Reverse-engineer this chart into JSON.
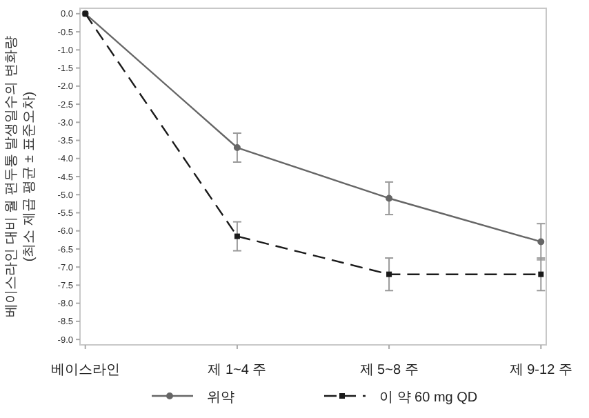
{
  "chart_data": {
    "type": "line",
    "ylabel": "베이스라인 대비 월 편두통 발생일수의 변화량\n(최소 제곱 평균 ± 표준오차)",
    "categories": [
      "베이스라인",
      "제 1~4 주",
      "제 5~8 주",
      "제 9-12 주"
    ],
    "series": [
      {
        "name": "위약",
        "color": "#666666",
        "line_style": "solid",
        "marker": "circle",
        "values": [
          0,
          -3.7,
          -5.1,
          -6.3
        ],
        "errors": [
          null,
          0.4,
          0.45,
          0.5
        ]
      },
      {
        "name": "이 약 60 mg QD",
        "color": "#1a1a1a",
        "line_style": "dashed",
        "marker": "square",
        "values": [
          0,
          -6.15,
          -7.2,
          -7.2
        ],
        "errors": [
          null,
          0.4,
          0.45,
          0.45
        ]
      }
    ],
    "ylim": [
      -9.15,
      0.15
    ],
    "yticks": [
      {
        "value": 0,
        "label": "0.0"
      },
      {
        "value": -0.5,
        "label": "-0.5"
      },
      {
        "value": -1,
        "label": "-1.0"
      },
      {
        "value": -1.5,
        "label": "-1.5"
      },
      {
        "value": -2,
        "label": "-2.0"
      },
      {
        "value": -2.5,
        "label": "-2.5"
      },
      {
        "value": -3,
        "label": "-3.0"
      },
      {
        "value": -3.5,
        "label": "-3.5"
      },
      {
        "value": -4,
        "label": "-4.0"
      },
      {
        "value": -4.5,
        "label": "-4.5"
      },
      {
        "value": -5,
        "label": "-5.0"
      },
      {
        "value": -5.5,
        "label": "-5.5"
      },
      {
        "value": -6,
        "label": "-6.0"
      },
      {
        "value": -6.5,
        "label": "-6.5"
      },
      {
        "value": -7,
        "label": "-7.0"
      },
      {
        "value": -7.5,
        "label": "-7.5"
      },
      {
        "value": -8,
        "label": "-8.0"
      },
      {
        "value": -8.5,
        "label": "-8.5"
      },
      {
        "value": -9,
        "label": "-9.0"
      }
    ],
    "legend": "bottom"
  }
}
